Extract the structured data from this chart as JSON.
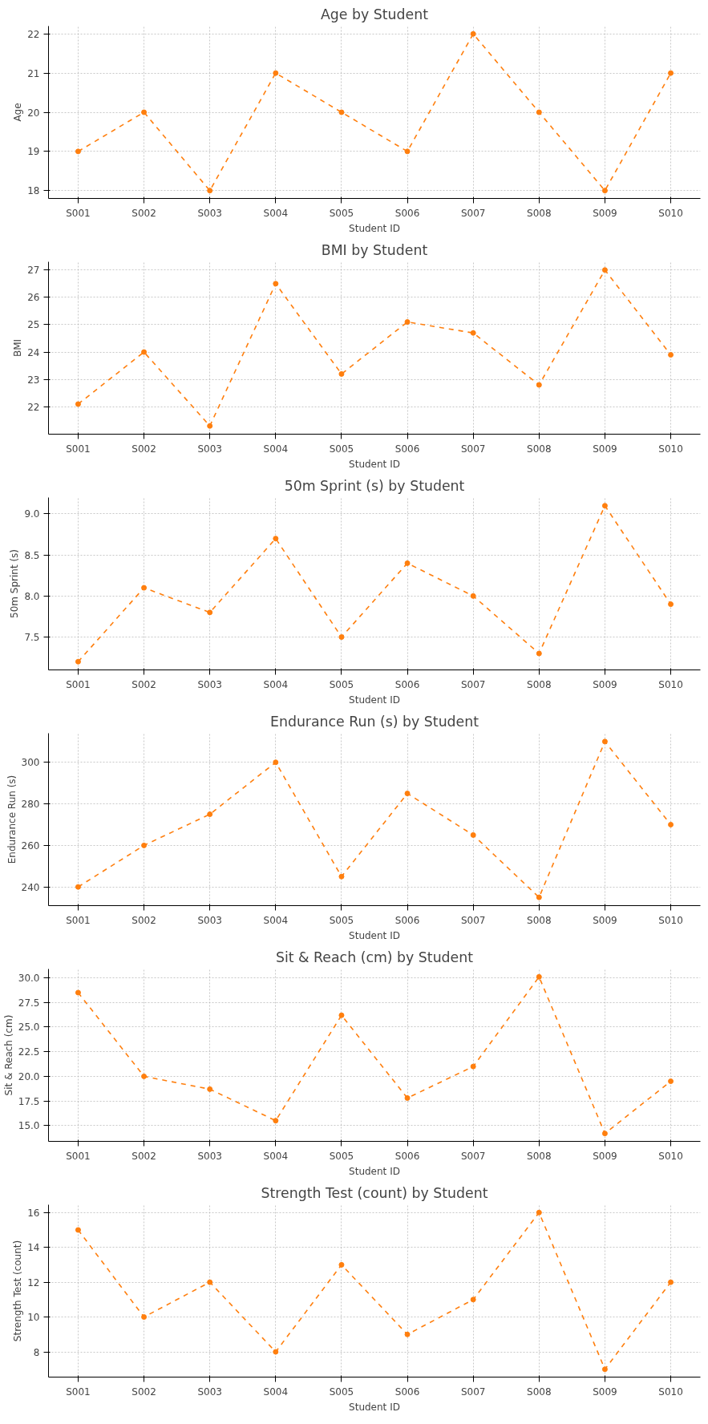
{
  "chart_data": [
    {
      "type": "line",
      "title": "Age by Student",
      "xlabel": "Student ID",
      "ylabel": "Age",
      "categories": [
        "S001",
        "S002",
        "S003",
        "S004",
        "S005",
        "S006",
        "S007",
        "S008",
        "S009",
        "S010"
      ],
      "series": [
        {
          "color": "#ff7f0e",
          "values": [
            19,
            20,
            18,
            21,
            20,
            19,
            22,
            20,
            18,
            21
          ]
        }
      ],
      "ylim": [
        17.8,
        22.2
      ],
      "yticks": [
        18,
        19,
        20,
        21,
        22
      ],
      "grid": true,
      "marker": "circle",
      "line_style": "dashed"
    },
    {
      "type": "line",
      "title": "BMI by Student",
      "xlabel": "Student ID",
      "ylabel": "BMI",
      "categories": [
        "S001",
        "S002",
        "S003",
        "S004",
        "S005",
        "S006",
        "S007",
        "S008",
        "S009",
        "S010"
      ],
      "series": [
        {
          "color": "#ff7f0e",
          "values": [
            22.1,
            24.0,
            21.3,
            26.5,
            23.2,
            25.1,
            24.7,
            22.8,
            27.0,
            23.9
          ]
        }
      ],
      "ylim": [
        21.0,
        27.3
      ],
      "yticks": [
        22,
        23,
        24,
        25,
        26,
        27
      ],
      "grid": true,
      "marker": "circle",
      "line_style": "dashed"
    },
    {
      "type": "line",
      "title": "50m Sprint (s) by Student",
      "xlabel": "Student ID",
      "ylabel": "50m Sprint (s)",
      "categories": [
        "S001",
        "S002",
        "S003",
        "S004",
        "S005",
        "S006",
        "S007",
        "S008",
        "S009",
        "S010"
      ],
      "series": [
        {
          "color": "#ff7f0e",
          "values": [
            7.2,
            8.1,
            7.8,
            8.7,
            7.5,
            8.4,
            8.0,
            7.3,
            9.1,
            7.9
          ]
        }
      ],
      "ylim": [
        7.1,
        9.2
      ],
      "yticks": [
        7.5,
        {
          "value": 8,
          "label": "8.0"
        },
        8.5,
        {
          "value": 9,
          "label": "9.0"
        }
      ],
      "grid": true,
      "marker": "circle",
      "line_style": "dashed"
    },
    {
      "type": "line",
      "title": "Endurance Run (s) by Student",
      "xlabel": "Student ID",
      "ylabel": "Endurance Run (s)",
      "categories": [
        "S001",
        "S002",
        "S003",
        "S004",
        "S005",
        "S006",
        "S007",
        "S008",
        "S009",
        "S010"
      ],
      "series": [
        {
          "color": "#ff7f0e",
          "values": [
            240,
            260,
            275,
            300,
            245,
            285,
            265,
            235,
            310,
            270
          ]
        }
      ],
      "ylim": [
        231,
        314
      ],
      "yticks": [
        240,
        260,
        280,
        300
      ],
      "grid": true,
      "marker": "circle",
      "line_style": "dashed"
    },
    {
      "type": "line",
      "title": "Sit & Reach (cm) by Student",
      "xlabel": "Student ID",
      "ylabel": "Sit & Reach (cm)",
      "categories": [
        "S001",
        "S002",
        "S003",
        "S004",
        "S005",
        "S006",
        "S007",
        "S008",
        "S009",
        "S010"
      ],
      "series": [
        {
          "color": "#ff7f0e",
          "values": [
            28.5,
            20.0,
            18.7,
            15.5,
            26.2,
            17.8,
            21.0,
            30.1,
            14.2,
            19.5
          ]
        }
      ],
      "ylim": [
        13.4,
        30.9
      ],
      "yticks": [
        {
          "value": 15,
          "label": "15.0"
        },
        17.5,
        {
          "value": 20,
          "label": "20.0"
        },
        22.5,
        {
          "value": 25,
          "label": "25.0"
        },
        27.5,
        {
          "value": 30,
          "label": "30.0"
        }
      ],
      "grid": true,
      "marker": "circle",
      "line_style": "dashed"
    },
    {
      "type": "line",
      "title": "Strength Test (count) by Student",
      "xlabel": "Student ID",
      "ylabel": "Strength Test (count)",
      "categories": [
        "S001",
        "S002",
        "S003",
        "S004",
        "S005",
        "S006",
        "S007",
        "S008",
        "S009",
        "S010"
      ],
      "series": [
        {
          "color": "#ff7f0e",
          "values": [
            15,
            10,
            12,
            8,
            13,
            9,
            11,
            16,
            7,
            12
          ]
        }
      ],
      "ylim": [
        6.55,
        16.45
      ],
      "yticks": [
        8,
        10,
        12,
        14,
        16
      ],
      "grid": true,
      "marker": "circle",
      "line_style": "dashed"
    }
  ]
}
